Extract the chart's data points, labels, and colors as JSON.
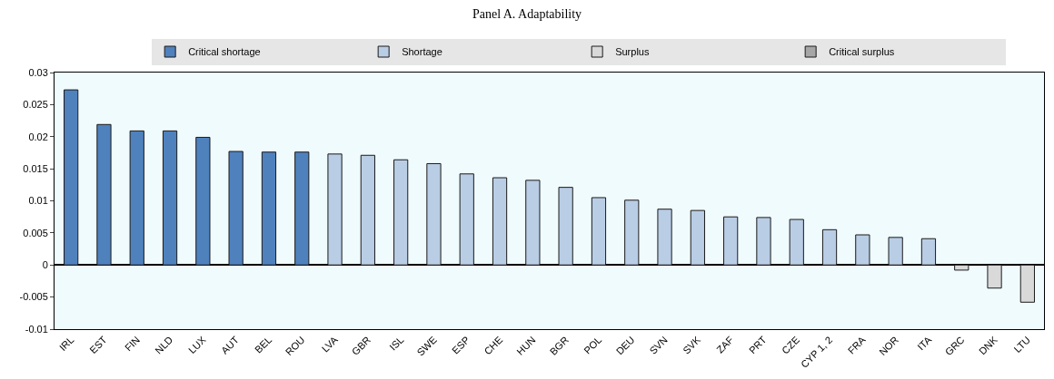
{
  "chart_data": {
    "type": "bar",
    "title": "Panel A. Adaptability",
    "categories": [
      "IRL",
      "EST",
      "FIN",
      "NLD",
      "LUX",
      "AUT",
      "BEL",
      "ROU",
      "LVA",
      "GBR",
      "ISL",
      "SWE",
      "ESP",
      "CHE",
      "HUN",
      "BGR",
      "POL",
      "DEU",
      "SVN",
      "SVK",
      "ZAF",
      "PRT",
      "CZE",
      "CYP 1, 2",
      "FRA",
      "NOR",
      "ITA",
      "GRC",
      "DNK",
      "LTU"
    ],
    "series": [
      {
        "name": "Critical shortage",
        "color": "#4f81bd",
        "values": [
          0.0273,
          0.0219,
          0.0209,
          0.0209,
          0.0199,
          0.0177,
          0.0176,
          0.0176,
          null,
          null,
          null,
          null,
          null,
          null,
          null,
          null,
          null,
          null,
          null,
          null,
          null,
          null,
          null,
          null,
          null,
          null,
          null,
          null,
          null,
          null
        ]
      },
      {
        "name": "Shortage",
        "color": "#b9cde5",
        "values": [
          null,
          null,
          null,
          null,
          null,
          null,
          null,
          null,
          0.0173,
          0.0171,
          0.0164,
          0.0158,
          0.0142,
          0.0136,
          0.0132,
          0.0121,
          0.0105,
          0.0101,
          0.0087,
          0.0085,
          0.0075,
          0.0074,
          0.0071,
          0.0055,
          0.0047,
          0.0043,
          0.0041,
          null,
          null,
          null
        ]
      },
      {
        "name": "Surplus",
        "color": "#d9d9d9",
        "values": [
          null,
          null,
          null,
          null,
          null,
          null,
          null,
          null,
          null,
          null,
          null,
          null,
          null,
          null,
          null,
          null,
          null,
          null,
          null,
          null,
          null,
          null,
          null,
          null,
          null,
          null,
          null,
          -0.0008,
          -0.0036,
          -0.0058
        ]
      },
      {
        "name": "Critical surplus",
        "color": "#a6a6a6",
        "values": [
          null,
          null,
          null,
          null,
          null,
          null,
          null,
          null,
          null,
          null,
          null,
          null,
          null,
          null,
          null,
          null,
          null,
          null,
          null,
          null,
          null,
          null,
          null,
          null,
          null,
          null,
          null,
          null,
          null,
          null
        ]
      }
    ],
    "ylim": [
      -0.01,
      0.03
    ],
    "yticks": [
      -0.01,
      -0.005,
      0,
      0.005,
      0.01,
      0.015,
      0.02,
      0.025,
      0.03
    ],
    "legend": "top"
  }
}
